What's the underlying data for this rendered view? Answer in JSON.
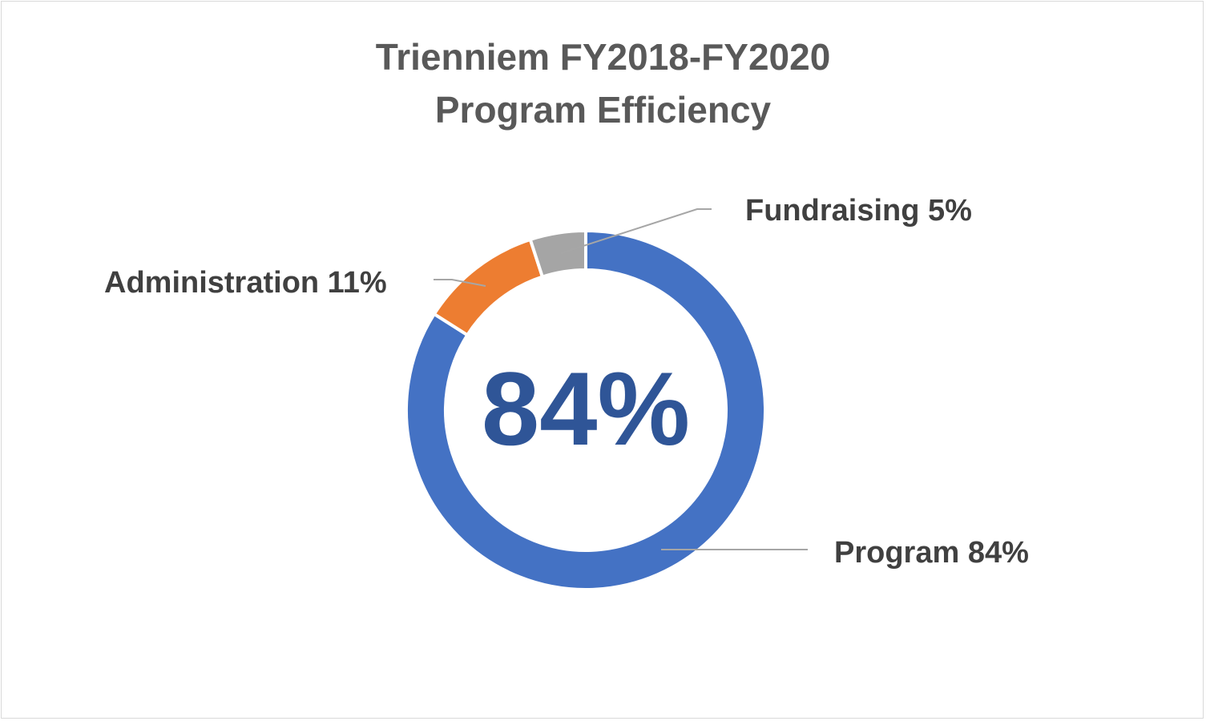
{
  "chart_data": {
    "type": "pie",
    "variant": "doughnut",
    "title": [
      "Trienniem FY2018-FY2020",
      "Program Efficiency"
    ],
    "center_label": "84%",
    "categories": [
      "Program",
      "Administration",
      "Fundraising"
    ],
    "values": [
      84,
      11,
      5
    ],
    "data_labels": [
      "Program 84%",
      "Administration 11%",
      "Fundraising 5%"
    ],
    "colors": [
      "#4472c4",
      "#ed7d31",
      "#a5a5a5"
    ],
    "legend": "none"
  }
}
